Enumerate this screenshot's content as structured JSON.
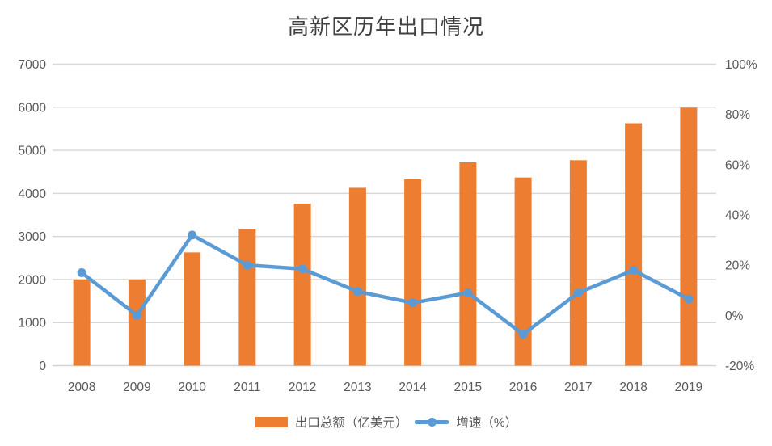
{
  "title": "高新区历年出口情况",
  "chart_data": {
    "type": "bar",
    "subtype": "combo-bar-line",
    "title": "高新区历年出口情况",
    "categories": [
      "2008",
      "2009",
      "2010",
      "2011",
      "2012",
      "2013",
      "2014",
      "2015",
      "2016",
      "2017",
      "2018",
      "2019"
    ],
    "series": [
      {
        "name": "出口总额（亿美元）",
        "type": "bar",
        "axis": "left",
        "color": "#ED7D31",
        "values": [
          2000,
          2000,
          2630,
          3180,
          3760,
          4130,
          4330,
          4720,
          4370,
          4770,
          5630,
          5990
        ]
      },
      {
        "name": "增速（%）",
        "type": "line",
        "axis": "right",
        "color": "#5B9BD5",
        "values": [
          17,
          0,
          32,
          20,
          18.5,
          9.5,
          5,
          9,
          -7.5,
          9,
          18,
          6.5
        ]
      }
    ],
    "left_axis": {
      "min": 0,
      "max": 7000,
      "step": 1000,
      "ticks": [
        "0",
        "1000",
        "2000",
        "3000",
        "4000",
        "5000",
        "6000",
        "7000"
      ]
    },
    "right_axis": {
      "min": -20,
      "max": 100,
      "step": 20,
      "ticks": [
        "-20%",
        "0%",
        "20%",
        "40%",
        "60%",
        "80%",
        "100%"
      ]
    },
    "grid": true,
    "legend_position": "bottom",
    "xlabel": "",
    "ylabel_left": "",
    "ylabel_right": ""
  },
  "colors": {
    "background": "#FFFFFF",
    "gridline": "#D9D9D9",
    "axis_line": "#D3D3D3",
    "axis_text": "#595959",
    "title_text": "#404040"
  }
}
